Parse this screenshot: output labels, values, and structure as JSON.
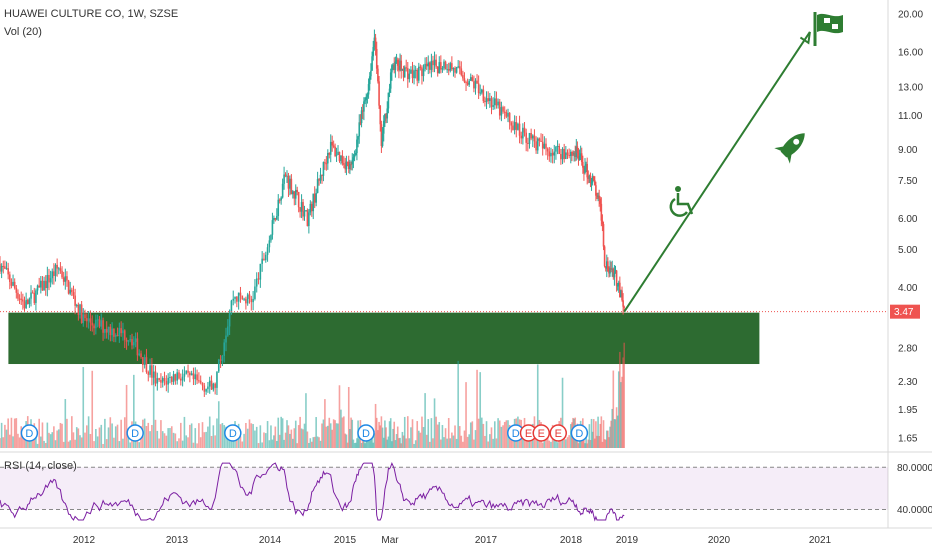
{
  "header": {
    "title": "HUAWEI CULTURE CO, 1W, SZSE",
    "volume_label": "Vol (20)",
    "rsi_label": "RSI (14, close)"
  },
  "chart_data": {
    "type": "candlestick",
    "symbol": "HUAWEI CULTURE CO",
    "interval": "1W",
    "exchange": "SZSE",
    "last_price": "3.47",
    "price_axis": {
      "scale": "log",
      "ticks": [
        "20.00",
        "16.00",
        "13.00",
        "11.00",
        "9.00",
        "7.50",
        "6.00",
        "5.00",
        "4.00",
        "3.47",
        "2.80",
        "2.30",
        "1.95",
        "1.65"
      ]
    },
    "time_axis": {
      "ticks": [
        "2012",
        "2013",
        "2014",
        "2015",
        "Mar",
        "2017",
        "2018",
        "2019",
        "2020",
        "2021"
      ]
    },
    "price_path": [
      {
        "t": 2011.0,
        "p": 4.6
      },
      {
        "t": 2011.3,
        "p": 3.6
      },
      {
        "t": 2011.7,
        "p": 4.5
      },
      {
        "t": 2012.0,
        "p": 3.3
      },
      {
        "t": 2012.5,
        "p": 3.0
      },
      {
        "t": 2012.8,
        "p": 2.25
      },
      {
        "t": 2013.0,
        "p": 2.4
      },
      {
        "t": 2013.4,
        "p": 2.2
      },
      {
        "t": 2013.6,
        "p": 3.8
      },
      {
        "t": 2013.8,
        "p": 3.7
      },
      {
        "t": 2014.2,
        "p": 7.8
      },
      {
        "t": 2014.5,
        "p": 6.0
      },
      {
        "t": 2014.8,
        "p": 9.2
      },
      {
        "t": 2015.1,
        "p": 8.0
      },
      {
        "t": 2015.4,
        "p": 13.5
      },
      {
        "t": 2015.5,
        "p": 18.0
      },
      {
        "t": 2015.6,
        "p": 9.2
      },
      {
        "t": 2015.8,
        "p": 15.0
      },
      {
        "t": 2016.1,
        "p": 14.0
      },
      {
        "t": 2016.5,
        "p": 15.0
      },
      {
        "t": 2016.9,
        "p": 13.0
      },
      {
        "t": 2017.4,
        "p": 10.0
      },
      {
        "t": 2017.7,
        "p": 9.0
      },
      {
        "t": 2018.1,
        "p": 8.8
      },
      {
        "t": 2018.4,
        "p": 7.4
      },
      {
        "t": 2018.55,
        "p": 6.1
      },
      {
        "t": 2018.6,
        "p": 4.7
      },
      {
        "t": 2018.8,
        "p": 4.3
      },
      {
        "t": 2018.95,
        "p": 3.47
      }
    ],
    "support_zone": {
      "low": 2.55,
      "high": 3.45,
      "from": 2011.1,
      "to": 2020.4
    },
    "projection": {
      "from": {
        "t": 2018.95,
        "p": 3.47
      },
      "to": {
        "t": 2020.9,
        "p": 18.0
      }
    },
    "dividend_markers": [
      {
        "t": 2011.35,
        "label": "D"
      },
      {
        "t": 2012.55,
        "label": "D"
      },
      {
        "t": 2013.6,
        "label": "D"
      },
      {
        "t": 2015.35,
        "label": "D"
      },
      {
        "t": 2017.35,
        "label": "D"
      },
      {
        "t": 2018.15,
        "label": "D"
      }
    ],
    "earnings_markers": [
      {
        "t": 2017.5,
        "label": "E"
      },
      {
        "t": 2017.65,
        "label": "E"
      },
      {
        "t": 2017.85,
        "label": "E"
      }
    ],
    "rsi": {
      "upper_band": "80.0000",
      "lower_band": "40.0000",
      "ticks": [
        "80.0000",
        "40.0000"
      ]
    },
    "emoji_icons": [
      "flag-icon",
      "rocket-icon",
      "wheelchair-icon"
    ],
    "colors": {
      "up": "#26a69a",
      "down": "#ef5350",
      "zone": "#1b5e20",
      "projection": "#2e7d32",
      "rsi": "#7b1fa2",
      "last_price_bg": "#ef5350"
    }
  }
}
